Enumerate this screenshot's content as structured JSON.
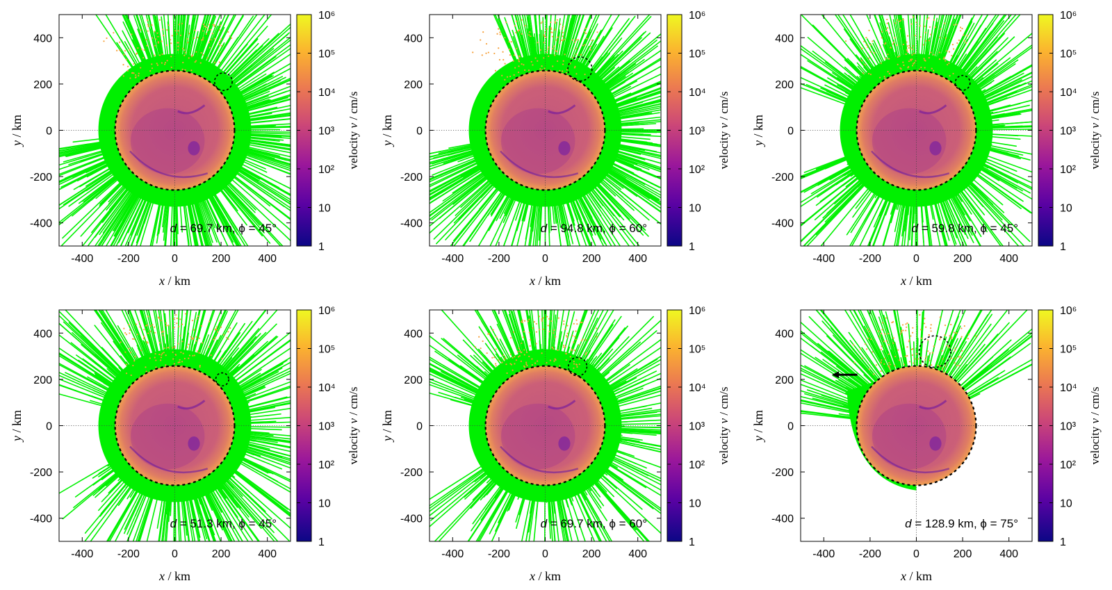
{
  "figure": {
    "colorbar_label_prefix": "velocity ",
    "colorbar_label_var": "v",
    "colorbar_label_suffix": " / cm/s"
  },
  "chart_data": [
    {
      "type": "heatmap",
      "panel": 1,
      "annotation": {
        "d_var": "d",
        "d_text": " = 69.7 km, ",
        "phi_text": "ϕ = 45°"
      },
      "xlabel_var": "x",
      "xlabel_unit": " / km",
      "ylabel_var": "y",
      "ylabel_unit": " / km",
      "xlim": [
        -500,
        500
      ],
      "ylim": [
        -500,
        500
      ],
      "xticks": [
        -400,
        -200,
        0,
        200,
        400
      ],
      "yticks": [
        -400,
        -200,
        0,
        200,
        400
      ],
      "body": {
        "center": [
          0,
          0
        ],
        "radius": 258
      },
      "moon": {
        "center": [
          210,
          210
        ],
        "radius": 38
      },
      "spray": {
        "angle_from": -175,
        "angle_to": 125,
        "min_reach": 420,
        "max_reach": 720,
        "density": 420
      },
      "colorbar": {
        "scale": "log",
        "range": [
          1,
          1000000
        ],
        "ticks": [
          "1",
          "10",
          "10²",
          "10³",
          "10⁴",
          "10⁵",
          "10⁶"
        ]
      },
      "velocity_scale": "log"
    },
    {
      "type": "heatmap",
      "panel": 2,
      "annotation": {
        "d_var": "d",
        "d_text": " = 94.8 km, ",
        "phi_text": "ϕ = 60°"
      },
      "xlabel_var": "x",
      "xlabel_unit": " / km",
      "ylabel_var": "y",
      "ylabel_unit": " / km",
      "xlim": [
        -500,
        500
      ],
      "ylim": [
        -500,
        500
      ],
      "xticks": [
        -400,
        -200,
        0,
        200,
        400
      ],
      "yticks": [
        -400,
        -200,
        0,
        200,
        400
      ],
      "body": {
        "center": [
          0,
          0
        ],
        "radius": 258
      },
      "moon": {
        "center": [
          150,
          265
        ],
        "radius": 52
      },
      "spray": {
        "angle_from": -170,
        "angle_to": 115,
        "min_reach": 400,
        "max_reach": 720,
        "density": 420
      },
      "colorbar": {
        "scale": "log",
        "range": [
          1,
          1000000
        ],
        "ticks": [
          "1",
          "10",
          "10²",
          "10³",
          "10⁴",
          "10⁵",
          "10⁶"
        ]
      },
      "velocity_scale": "log"
    },
    {
      "type": "heatmap",
      "panel": 3,
      "annotation": {
        "d_var": "d",
        "d_text": " = 59.8 km, ",
        "phi_text": "ϕ = 45°"
      },
      "xlabel_var": "x",
      "xlabel_unit": " / km",
      "ylabel_var": "y",
      "ylabel_unit": " / km",
      "xlim": [
        -500,
        500
      ],
      "ylim": [
        -500,
        500
      ],
      "xticks": [
        -400,
        -200,
        0,
        200,
        400
      ],
      "yticks": [
        -400,
        -200,
        0,
        200,
        400
      ],
      "body": {
        "center": [
          0,
          0
        ],
        "radius": 258
      },
      "moon": {
        "center": [
          200,
          205
        ],
        "radius": 32
      },
      "spray": {
        "angle_from": -160,
        "angle_to": 160,
        "min_reach": 330,
        "max_reach": 760,
        "density": 420
      },
      "colorbar": {
        "scale": "log",
        "range": [
          1,
          1000000
        ],
        "ticks": [
          "1",
          "10",
          "10²",
          "10³",
          "10⁴",
          "10⁵",
          "10⁶"
        ]
      },
      "velocity_scale": "log"
    },
    {
      "type": "heatmap",
      "panel": 4,
      "annotation": {
        "d_var": "d",
        "d_text": " = 51.3 km, ",
        "phi_text": "ϕ = 45°"
      },
      "xlabel_var": "x",
      "xlabel_unit": " / km",
      "ylabel_var": "y",
      "ylabel_unit": " / km",
      "xlim": [
        -500,
        500
      ],
      "ylim": [
        -500,
        500
      ],
      "xticks": [
        -400,
        -200,
        0,
        200,
        400
      ],
      "yticks": [
        -400,
        -200,
        0,
        200,
        400
      ],
      "body": {
        "center": [
          0,
          0
        ],
        "radius": 258
      },
      "moon": {
        "center": [
          205,
          200
        ],
        "radius": 28
      },
      "spray": {
        "angle_from": -150,
        "angle_to": 165,
        "min_reach": 320,
        "max_reach": 780,
        "density": 420
      },
      "colorbar": {
        "scale": "log",
        "range": [
          1,
          1000000
        ],
        "ticks": [
          "1",
          "10",
          "10²",
          "10³",
          "10⁴",
          "10⁵",
          "10⁶"
        ]
      },
      "velocity_scale": "log"
    },
    {
      "type": "heatmap",
      "panel": 5,
      "annotation": {
        "d_var": "d",
        "d_text": " = 69.7 km, ",
        "phi_text": "ϕ = 60°"
      },
      "xlabel_var": "x",
      "xlabel_unit": " / km",
      "ylabel_var": "y",
      "ylabel_unit": " / km",
      "xlim": [
        -500,
        500
      ],
      "ylim": [
        -500,
        500
      ],
      "xticks": [
        -400,
        -200,
        0,
        200,
        400
      ],
      "yticks": [
        -400,
        -200,
        0,
        200,
        400
      ],
      "body": {
        "center": [
          0,
          0
        ],
        "radius": 258
      },
      "moon": {
        "center": [
          140,
          255
        ],
        "radius": 40
      },
      "spray": {
        "angle_from": -150,
        "angle_to": 165,
        "min_reach": 320,
        "max_reach": 780,
        "density": 380
      },
      "colorbar": {
        "scale": "log",
        "range": [
          1,
          1000000
        ],
        "ticks": [
          "1",
          "10",
          "10²",
          "10³",
          "10⁴",
          "10⁵",
          "10⁶"
        ]
      },
      "velocity_scale": "log"
    },
    {
      "type": "heatmap",
      "panel": 6,
      "annotation": {
        "d_var": "d",
        "d_text": " = 128.9 km, ",
        "phi_text": "ϕ = 75°"
      },
      "xlabel_var": "x",
      "xlabel_unit": " / km",
      "ylabel_var": "y",
      "ylabel_unit": " / km",
      "xlim": [
        -500,
        500
      ],
      "ylim": [
        -500,
        500
      ],
      "xticks": [
        -400,
        -200,
        0,
        200,
        400
      ],
      "yticks": [
        -400,
        -200,
        0,
        200,
        400
      ],
      "body": {
        "center": [
          0,
          0
        ],
        "radius": 258
      },
      "moon": {
        "center": [
          80,
          320
        ],
        "radius": 68
      },
      "spray": {
        "angle_from": 25,
        "angle_to": 175,
        "min_reach": 300,
        "max_reach": 820,
        "density": 160
      },
      "arrow": {
        "from": [
          -255,
          220
        ],
        "to": [
          -365,
          220
        ]
      },
      "colorbar": {
        "scale": "log",
        "range": [
          1,
          1000000
        ],
        "ticks": [
          "1",
          "10",
          "10²",
          "10³",
          "10⁴",
          "10⁵",
          "10⁶"
        ]
      },
      "velocity_scale": "log"
    }
  ]
}
